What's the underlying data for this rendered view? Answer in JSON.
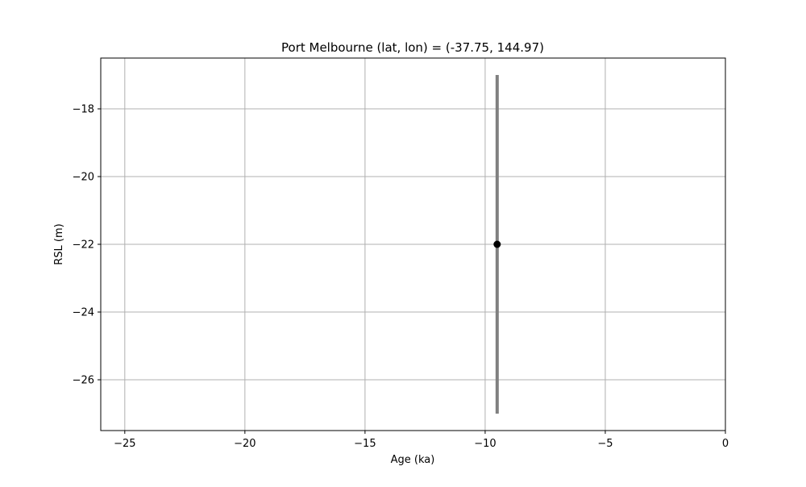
{
  "chart_data": {
    "type": "scatter",
    "title": "Port Melbourne (lat, lon) = (-37.75, 144.97)",
    "xlabel": "Age (ka)",
    "ylabel": "RSL (m)",
    "xlim": [
      -26,
      0
    ],
    "ylim": [
      -27.5,
      -16.5
    ],
    "xticks": [
      -25,
      -20,
      -15,
      -10,
      -5,
      0
    ],
    "xtick_labels": [
      "−25",
      "−20",
      "−15",
      "−10",
      "−5",
      "0"
    ],
    "yticks": [
      -18,
      -20,
      -22,
      -24,
      -26
    ],
    "ytick_labels": [
      "−18",
      "−20",
      "−22",
      "−24",
      "−26"
    ],
    "grid": true,
    "points": [
      {
        "x": -9.5,
        "y": -22,
        "y_error": 5
      }
    ],
    "colors": {
      "point": "#000000",
      "errorbar": "#808080",
      "grid": "#b0b0b0"
    }
  }
}
